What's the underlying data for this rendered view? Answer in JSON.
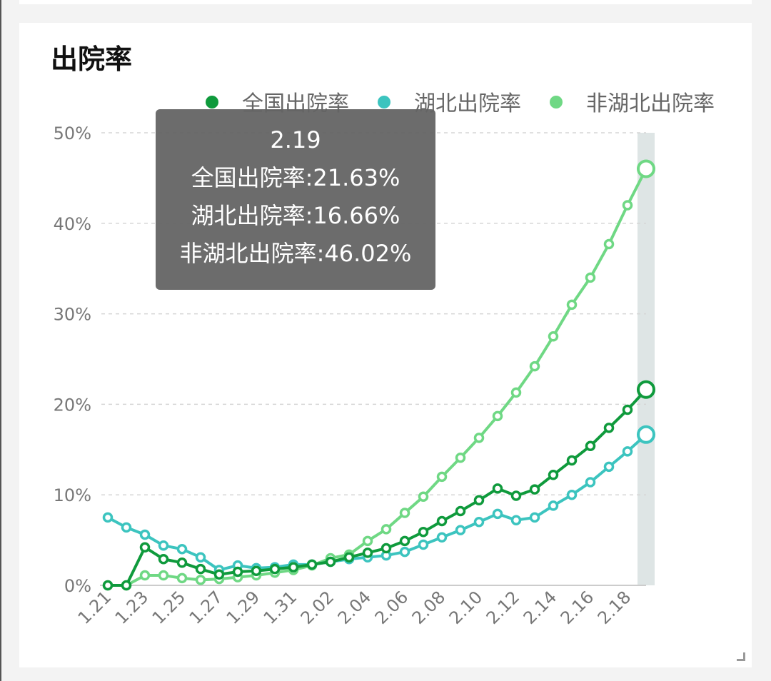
{
  "title": "出院率",
  "chart_data": {
    "type": "line",
    "title": "出院率",
    "x": [
      "1.21",
      "1.22",
      "1.23",
      "1.24",
      "1.25",
      "1.26",
      "1.27",
      "1.28",
      "1.29",
      "1.30",
      "1.31",
      "2.01",
      "2.02",
      "2.03",
      "2.04",
      "2.05",
      "2.06",
      "2.07",
      "2.08",
      "2.09",
      "2.10",
      "2.11",
      "2.12",
      "2.13",
      "2.14",
      "2.15",
      "2.16",
      "2.17",
      "2.18",
      "2.19"
    ],
    "x_tick_labels": [
      "1.21",
      "1.23",
      "1.25",
      "1.27",
      "1.29",
      "1.31",
      "2.02",
      "2.04",
      "2.06",
      "2.08",
      "2.10",
      "2.12",
      "2.14",
      "2.16",
      "2.18"
    ],
    "y_tick_labels": [
      "0%",
      "10%",
      "20%",
      "30%",
      "40%",
      "50%"
    ],
    "ylim": [
      0,
      50
    ],
    "y_unit": "%",
    "grid": "horizontal dashed",
    "legend_position": "top-right",
    "series": [
      {
        "name": "全国出院率",
        "color": "#0f9a3c",
        "values": [
          0,
          0,
          4.2,
          2.9,
          2.5,
          1.8,
          1.2,
          1.5,
          1.6,
          1.8,
          2.0,
          2.3,
          2.6,
          3.1,
          3.6,
          4.1,
          4.9,
          5.9,
          7.1,
          8.2,
          9.4,
          10.7,
          9.9,
          10.6,
          12.2,
          13.8,
          15.4,
          17.4,
          19.4,
          21.63
        ]
      },
      {
        "name": "湖北出院率",
        "color": "#3cc4bf",
        "values": [
          7.5,
          6.4,
          5.6,
          4.4,
          4.0,
          3.1,
          1.7,
          2.2,
          1.9,
          2.0,
          2.3,
          2.3,
          2.6,
          2.9,
          3.1,
          3.3,
          3.7,
          4.5,
          5.3,
          6.1,
          7.0,
          7.9,
          7.2,
          7.5,
          8.8,
          10.0,
          11.4,
          13.1,
          14.8,
          16.66
        ]
      },
      {
        "name": "非湖北出院率",
        "color": "#6fd884",
        "values": [
          0,
          0,
          1.1,
          1.1,
          0.8,
          0.6,
          0.7,
          0.9,
          1.1,
          1.4,
          1.7,
          2.2,
          3.0,
          3.4,
          4.9,
          6.2,
          8.0,
          9.8,
          12.0,
          14.1,
          16.3,
          18.7,
          21.3,
          24.2,
          27.5,
          31.0,
          34.0,
          37.7,
          42.0,
          46.02
        ]
      }
    ],
    "tooltip": {
      "date": "2.19",
      "lines": [
        "全国出院率:21.63%",
        "湖北出院率:16.66%",
        "非湖北出院率:46.02%"
      ]
    }
  }
}
